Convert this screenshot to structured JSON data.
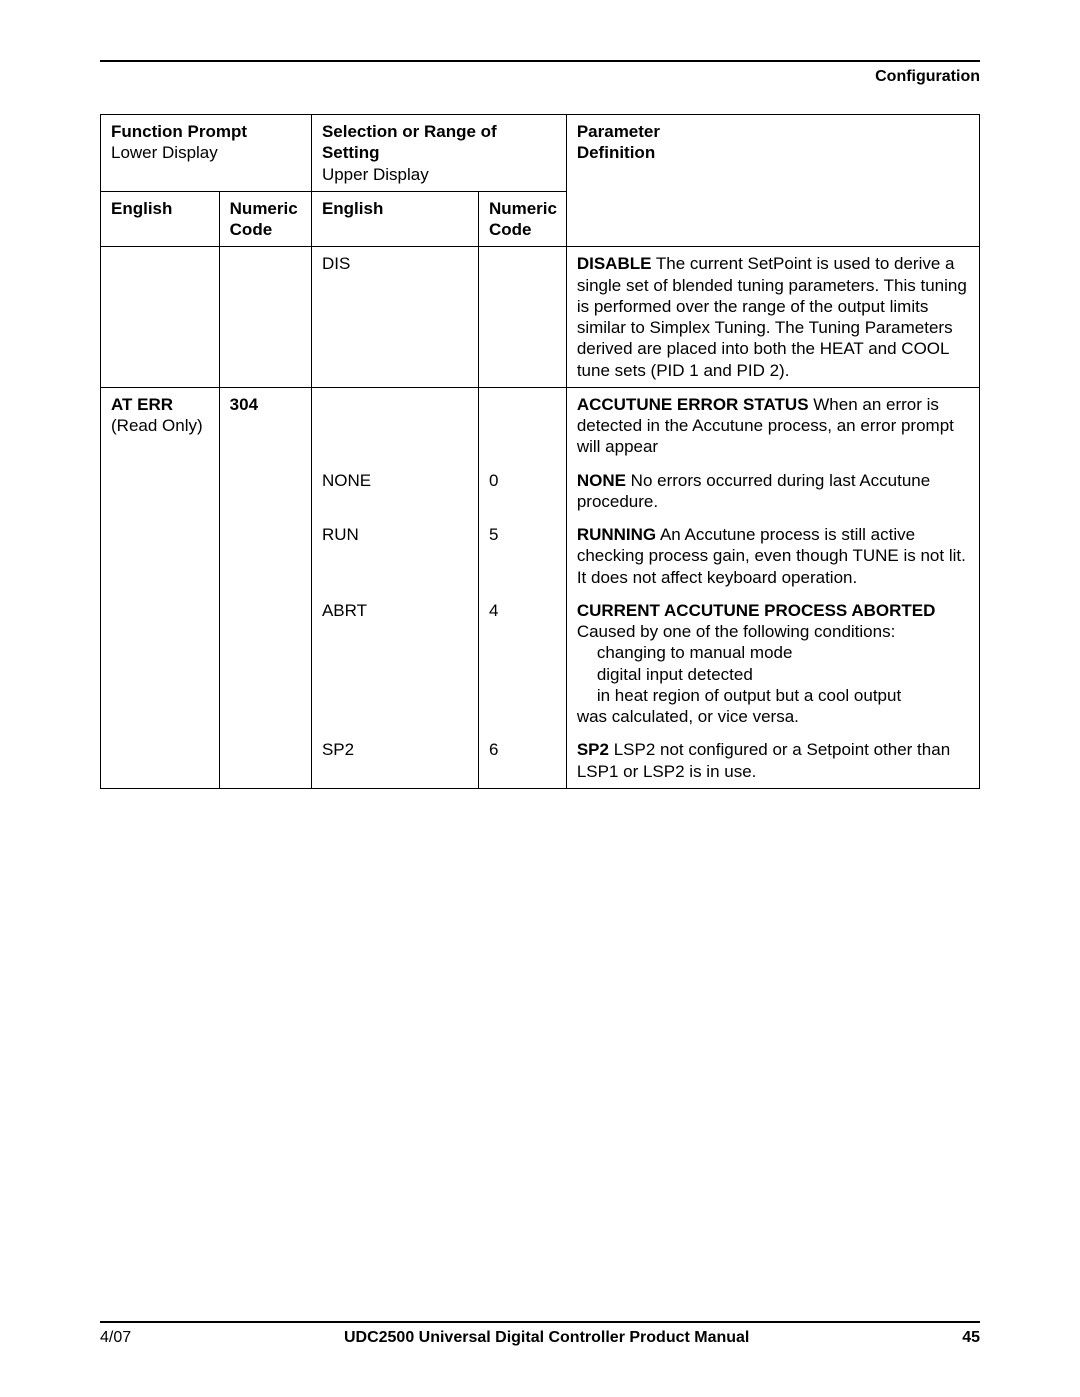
{
  "header": {
    "section_label": "Configuration"
  },
  "columns": {
    "fp_group_title": "Function Prompt",
    "fp_group_sub": "Lower Display",
    "sel_group_title": "Selection or Range of Setting",
    "sel_group_sub": "Upper Display",
    "def_title_line1": "Parameter",
    "def_title_line2": "Definition",
    "fp_eng": "English",
    "fp_code": "Numeric Code",
    "sel_eng": "English",
    "sel_code": "Numeric Code"
  },
  "rows": {
    "dis": {
      "sel_eng": "DIS",
      "def_bold": "DISABLE",
      "def_text": "  The current SetPoint is used to derive a single set of blended tuning parameters.  This tuning is performed over the range of the output limits similar to Simplex Tuning.  The Tuning Parameters derived are placed into both the HEAT and COOL tune sets (PID 1 and PID 2)."
    },
    "aterr": {
      "fp_eng_bold": "AT ERR",
      "fp_eng_sub": "(Read Only)",
      "fp_code": "304",
      "def_bold": "ACCUTUNE ERROR STATUS",
      "def_text": " When an error is detected in the Accutune process, an error prompt will appear"
    },
    "none": {
      "sel_eng": "NONE",
      "sel_code": "0",
      "def_bold": "NONE",
      "def_text": " No errors occurred during last Accutune procedure."
    },
    "run": {
      "sel_eng": "RUN",
      "sel_code": "5",
      "def_bold": "RUNNING",
      "def_text": " An Accutune process is still active checking process gain, even though  TUNE  is not lit. It does not affect keyboard operation."
    },
    "abrt": {
      "sel_eng": "ABRT",
      "sel_code": "4",
      "def_bold1": "CURRENT ACCUTUNE PROCESS ABORTED",
      "def_text1": " Caused by one of the following conditions:",
      "def_indent1": "changing to manual mode",
      "def_indent2": "digital input detected",
      "def_indent3": "in heat region of output but a cool output",
      "def_text2": "was calculated, or vice versa."
    },
    "sp2": {
      "sel_eng": "SP2",
      "sel_code": "6",
      "def_bold": "SP2",
      "def_text": " LSP2 not configured or a Setpoint other than LSP1 or LSP2 is in use."
    }
  },
  "footer": {
    "date": "4/07",
    "title": "UDC2500 Universal Digital Controller Product Manual",
    "page": "45"
  }
}
